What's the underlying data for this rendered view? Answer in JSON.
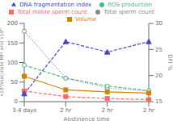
{
  "chart_data": {
    "type": "line",
    "categories": [
      "3-4 days",
      "2 hr",
      "2 hr",
      "2 hr"
    ],
    "x_label": "Abstinence time",
    "y_label": "x10⁶/ejaculate MFI and x10⁶",
    "y2_label": "DFI %",
    "ylim": [
      0,
      200
    ],
    "yticks": [
      0,
      50,
      100,
      150,
      200
    ],
    "y2lim": [
      15,
      30
    ],
    "y2ticks": [
      15,
      20,
      25,
      30
    ],
    "grid": false,
    "legend": "top",
    "series": [
      {
        "name": "Total sperm count",
        "color": "#888888",
        "values": [
          180,
          60,
          35,
          27
        ],
        "marker": "open_circle",
        "line_style": "dotted"
      },
      {
        "name": "ROS production",
        "color": "#44bb88",
        "values": [
          93,
          60,
          40,
          28
        ],
        "marker": "open_circle",
        "line_style": "dashed"
      },
      {
        "name": "Volume",
        "color": "#cc8800",
        "values": [
          65,
          30,
          25,
          22
        ],
        "marker": "square",
        "line_style": "solid"
      },
      {
        "name": "Total motile sperm count",
        "color": "#ff6666",
        "values": [
          27,
          13,
          8,
          5
        ],
        "marker": "square",
        "line_style": "dashed"
      },
      {
        "name": "DNA fragmentation index",
        "color": "#4444cc",
        "values": [
          16.5,
          26.5,
          24.5,
          26.5
        ],
        "marker": "triangle",
        "line_style": "dashed",
        "axis": "y2"
      }
    ]
  }
}
